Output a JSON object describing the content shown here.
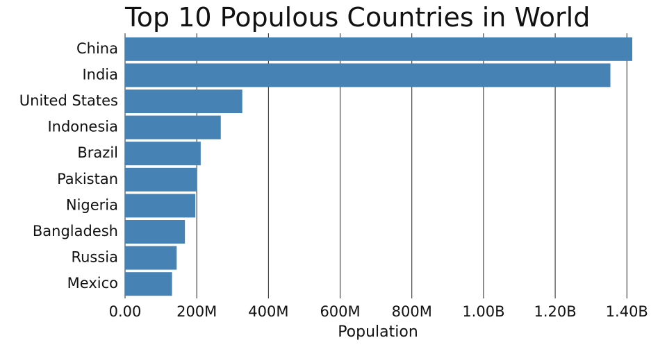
{
  "chart_data": {
    "type": "bar",
    "orientation": "horizontal",
    "title": "Top 10 Populous Countries in World",
    "xlabel": "Population",
    "ylabel": "",
    "categories": [
      "China",
      "India",
      "United States",
      "Indonesia",
      "Brazil",
      "Pakistan",
      "Nigeria",
      "Bangladesh",
      "Russia",
      "Mexico"
    ],
    "values": [
      1415000000,
      1354000000,
      327000000,
      267000000,
      211000000,
      201000000,
      196000000,
      167000000,
      144000000,
      131000000
    ],
    "xlim": [
      0,
      1415000000
    ],
    "xticks": [
      0,
      200000000,
      400000000,
      600000000,
      800000000,
      1000000000,
      1200000000,
      1400000000
    ],
    "xtick_labels": [
      "0.00",
      "200M",
      "400M",
      "600M",
      "800M",
      "1.00B",
      "1.20B",
      "1.40B"
    ],
    "grid": true,
    "colors": {
      "bar": "#4682b4",
      "grid": "#222222",
      "text": "#111111"
    }
  }
}
